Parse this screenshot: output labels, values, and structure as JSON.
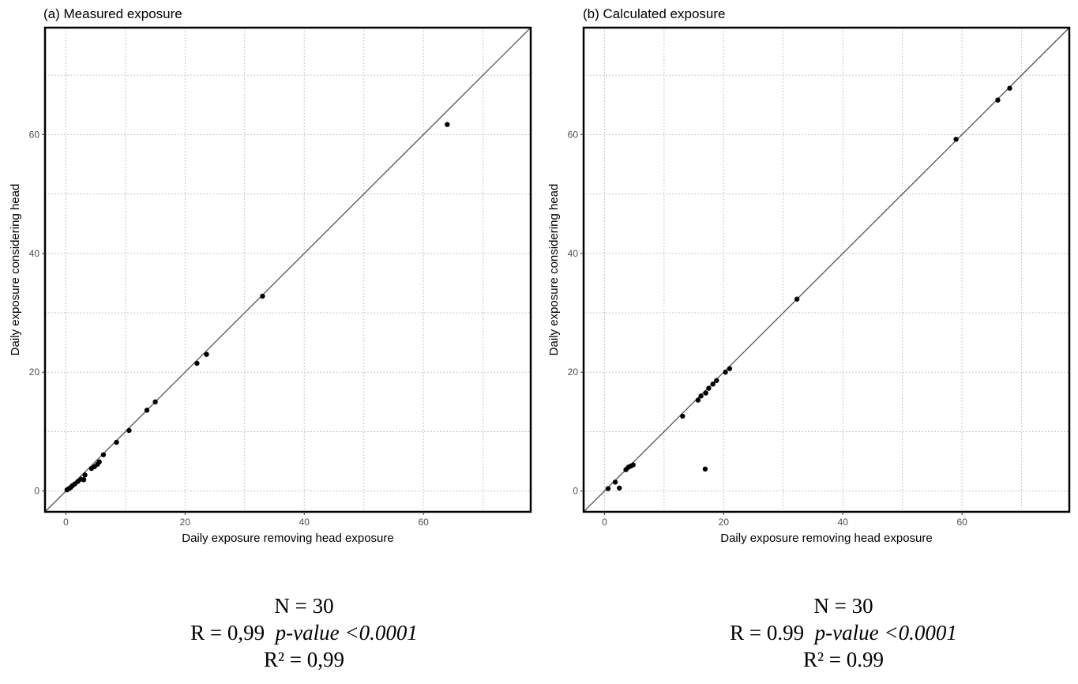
{
  "chart_data": [
    {
      "type": "scatter",
      "title": "(a) Measured exposure",
      "xlabel": "Daily exposure removing head exposure",
      "ylabel": "Daily exposure considering head",
      "xlim": [
        -3.5,
        78
      ],
      "ylim": [
        -3.5,
        78
      ],
      "xticks": [
        0,
        20,
        40,
        60
      ],
      "yticks": [
        0,
        20,
        40,
        60
      ],
      "grid": true,
      "identity_line": true,
      "points": [
        {
          "x": 0.2,
          "y": 0.2
        },
        {
          "x": 0.5,
          "y": 0.4
        },
        {
          "x": 0.8,
          "y": 0.6
        },
        {
          "x": 1.1,
          "y": 0.9
        },
        {
          "x": 1.5,
          "y": 1.2
        },
        {
          "x": 2.0,
          "y": 1.6
        },
        {
          "x": 2.5,
          "y": 2.0
        },
        {
          "x": 3.0,
          "y": 1.9
        },
        {
          "x": 3.2,
          "y": 2.7
        },
        {
          "x": 4.3,
          "y": 3.8
        },
        {
          "x": 4.8,
          "y": 4.1
        },
        {
          "x": 5.3,
          "y": 4.5
        },
        {
          "x": 5.6,
          "y": 4.9
        },
        {
          "x": 6.3,
          "y": 6.1
        },
        {
          "x": 8.5,
          "y": 8.2
        },
        {
          "x": 10.6,
          "y": 10.2
        },
        {
          "x": 13.6,
          "y": 13.6
        },
        {
          "x": 15.0,
          "y": 15.0
        },
        {
          "x": 22.0,
          "y": 21.5
        },
        {
          "x": 23.6,
          "y": 23.0
        },
        {
          "x": 33.0,
          "y": 32.8
        },
        {
          "x": 64.0,
          "y": 61.7
        }
      ]
    },
    {
      "type": "scatter",
      "title": "(b) Calculated exposure",
      "xlabel": "Daily exposure removing head exposure",
      "ylabel": "Daily exposure considering head",
      "xlim": [
        -3.5,
        78
      ],
      "ylim": [
        -3.5,
        78
      ],
      "xticks": [
        0,
        20,
        40,
        60
      ],
      "yticks": [
        0,
        20,
        40,
        60
      ],
      "grid": true,
      "identity_line": true,
      "points": [
        {
          "x": 0.6,
          "y": 0.4
        },
        {
          "x": 1.8,
          "y": 1.5
        },
        {
          "x": 2.5,
          "y": 0.5
        },
        {
          "x": 3.6,
          "y": 3.6
        },
        {
          "x": 4.0,
          "y": 4.0
        },
        {
          "x": 4.4,
          "y": 4.2
        },
        {
          "x": 4.8,
          "y": 4.4
        },
        {
          "x": 13.1,
          "y": 12.6
        },
        {
          "x": 15.7,
          "y": 15.3
        },
        {
          "x": 16.2,
          "y": 16.0
        },
        {
          "x": 17.0,
          "y": 16.5
        },
        {
          "x": 17.5,
          "y": 17.3
        },
        {
          "x": 18.2,
          "y": 18.0
        },
        {
          "x": 18.8,
          "y": 18.6
        },
        {
          "x": 20.3,
          "y": 20.0
        },
        {
          "x": 21.0,
          "y": 20.6
        },
        {
          "x": 16.9,
          "y": 3.7
        },
        {
          "x": 32.3,
          "y": 32.3
        },
        {
          "x": 59.0,
          "y": 59.2
        },
        {
          "x": 66.0,
          "y": 65.8
        },
        {
          "x": 68.0,
          "y": 67.8
        }
      ]
    }
  ],
  "stats": [
    {
      "n": "N = 30",
      "r": "R = 0,99",
      "pvalue": "p-value <0.0001",
      "r2": "R² = 0,99"
    },
    {
      "n": "N = 30",
      "r": "R = 0.99",
      "pvalue": "p-value <0.0001",
      "r2": "R² = 0.99"
    }
  ],
  "colors": {
    "point": "#000000",
    "grid": "#c8c8c8",
    "line": "#555555",
    "frame": "#000000",
    "tick_text": "#4d4d4d"
  }
}
